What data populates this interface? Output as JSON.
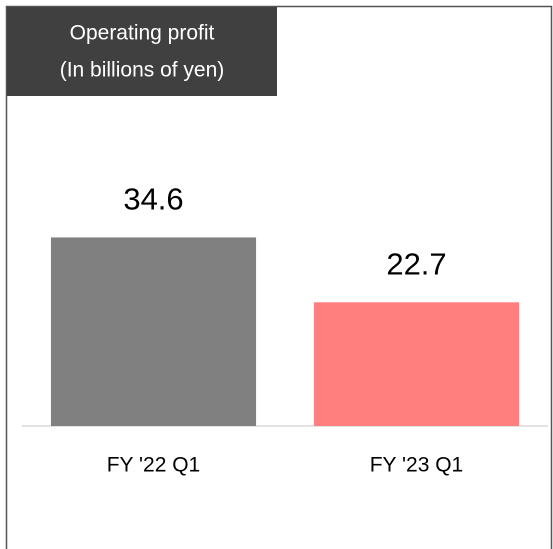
{
  "chart_data": {
    "type": "bar",
    "title": "Operating profit",
    "subtitle": "(In billions of yen)",
    "categories": [
      "FY '22 Q1",
      "FY '23 Q1"
    ],
    "values": [
      34.6,
      22.7
    ],
    "colors": [
      "#808080",
      "#ff7f7f"
    ],
    "ylim": [
      0,
      40
    ]
  }
}
